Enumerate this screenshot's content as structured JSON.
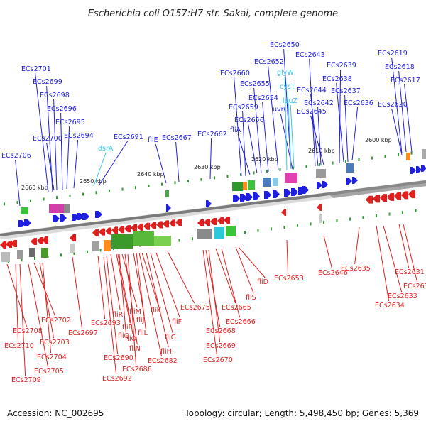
{
  "title": "Escherichia coli O157:H7 str. Sakai, complete genome",
  "footer": {
    "accession": "Accession: NC_002695",
    "summary": "Topology: circular; Length: 5,498,450 bp; Genes: 5,369"
  },
  "colors": {
    "forward": "#1f1fe0",
    "reverse": "#e01f1f",
    "rna": "#3cc6e6",
    "backbone": "#777777",
    "tick": "#2e9a2e"
  },
  "scale_labels": [
    "2660 kbp",
    "2650 kbp",
    "2640 kbp",
    "2630 kbp",
    "2620 kbp",
    "2610 kbp",
    "2600 kbp"
  ],
  "forward_labels": [
    "ECs2706",
    "ECs2701",
    "ECs2699",
    "ECs2698",
    "ECs2696",
    "ECs2695",
    "ECs2700",
    "ECs2694",
    "ECs2691",
    "fliE",
    "ECs2667",
    "ECs2662",
    "ECs2660",
    "ECs2659",
    "fliA",
    "ECs2656",
    "ECs2655",
    "ECs2654",
    "ECs2652",
    "ECs2650",
    "uvrC",
    "ECs2643",
    "ECs2644",
    "ECs2642",
    "ECs2645",
    "ECs2639",
    "ECs2638",
    "ECs2637",
    "ECs2636",
    "ECs2619",
    "ECs2618",
    "ECs2617",
    "ECs2620"
  ],
  "rna_labels": [
    "dsrA",
    "glyW",
    "cysT",
    "leuZ"
  ],
  "reverse_labels": [
    "ECs2708",
    "ECs2702",
    "ECs2703",
    "ECs2710",
    "ECs2704",
    "ECs2705",
    "ECs2709",
    "ECs2697",
    "ECs2693",
    "fliR",
    "fliP",
    "fliQ",
    "fliM",
    "fliN",
    "fliO",
    "ECs2690",
    "ECs2692",
    "fliJ",
    "fliL",
    "fliK",
    "ECs2686",
    "ECs2682",
    "fliH",
    "fliG",
    "fliF",
    "ECs2675",
    "ECs2668",
    "ECs2669",
    "ECs2670",
    "ECs2665",
    "ECs2666",
    "fliS",
    "fliD",
    "ECs2653",
    "ECs2646",
    "ECs2635",
    "ECs2631",
    "ECs2632",
    "ECs2633",
    "ECs2634"
  ]
}
